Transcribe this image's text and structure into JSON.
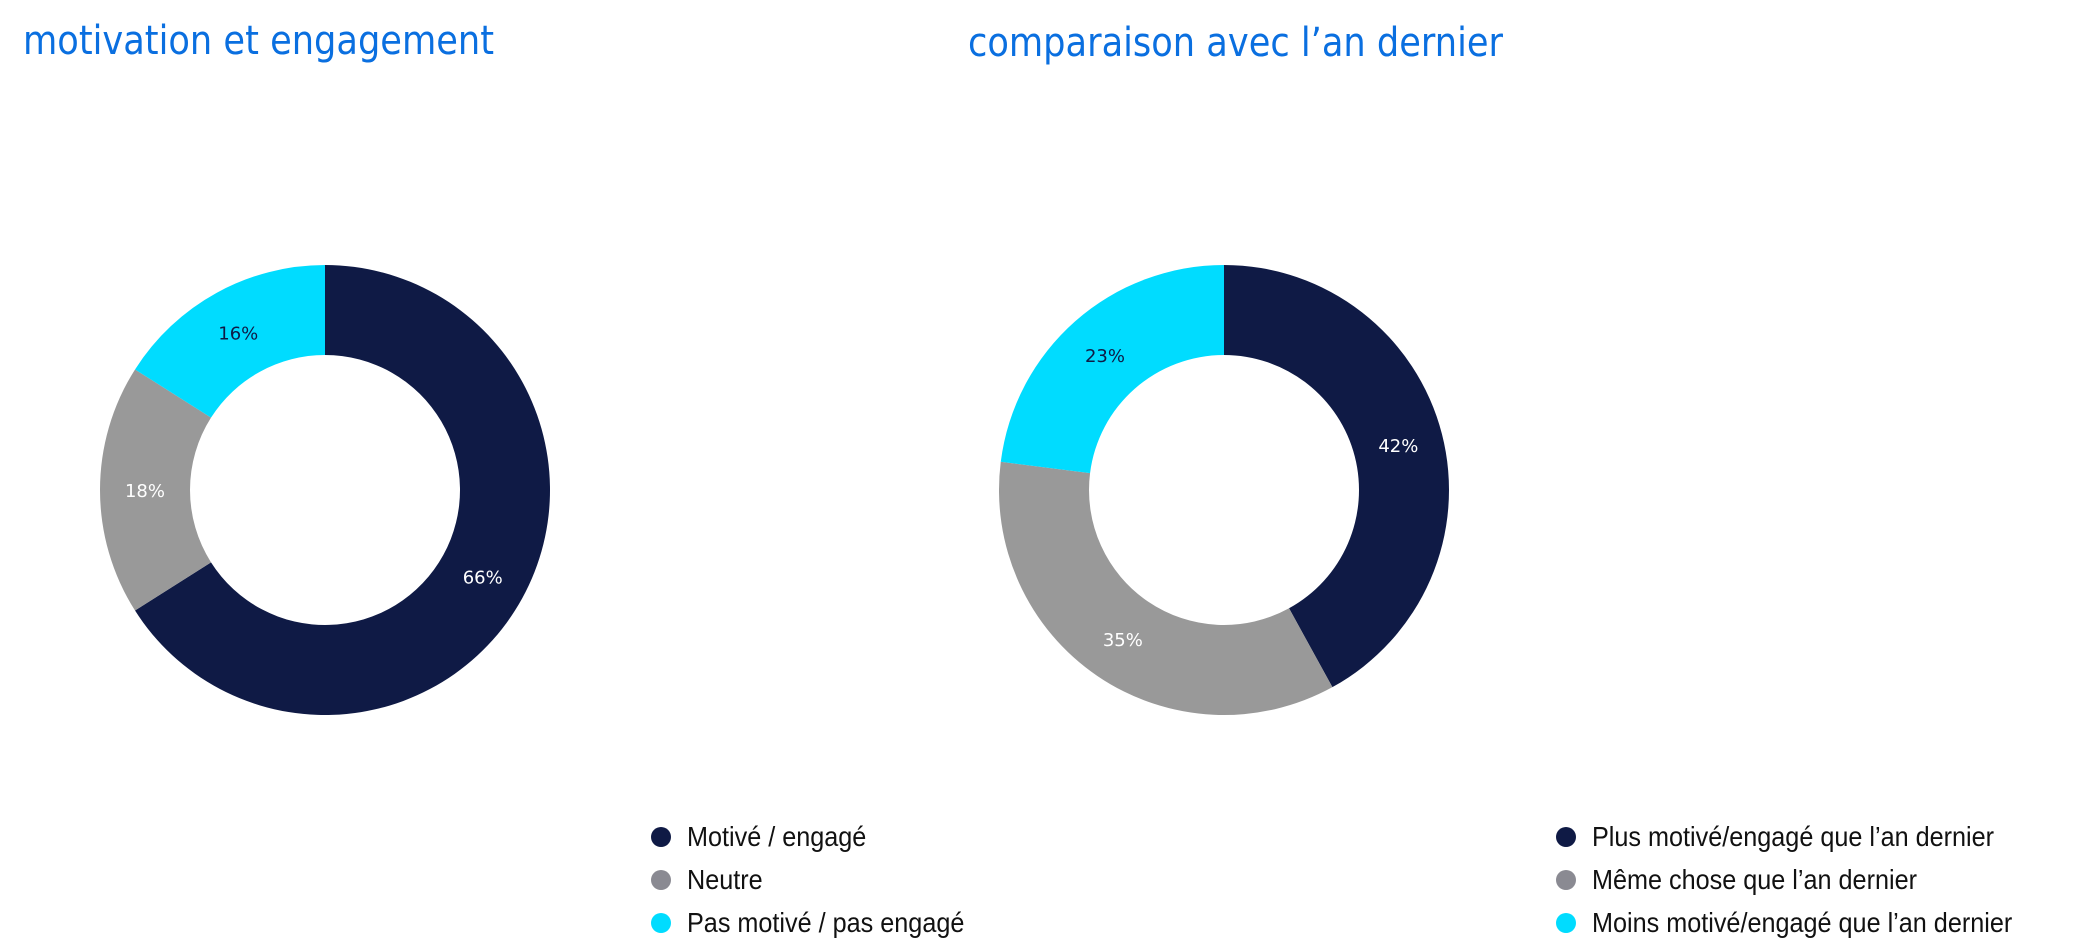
{
  "chart_data": [
    {
      "type": "pie",
      "donut": true,
      "title": "motivation et engagement",
      "categories": [
        "Motivé / engagé",
        "Neutre",
        "Pas motivé / pas engagé"
      ],
      "values": [
        66,
        18,
        16
      ],
      "labels": [
        "66%",
        "18%",
        "16%"
      ],
      "colors": [
        "#0f1a45",
        "#999999",
        "#00dcff"
      ],
      "legend": "bottom-right"
    },
    {
      "type": "pie",
      "donut": true,
      "title": "comparaison avec l’an dernier",
      "categories": [
        "Plus motivé/engagé que l’an dernier",
        "Même chose que l’an dernier",
        "Moins motivé/engagé que l’an dernier"
      ],
      "values": [
        42,
        35,
        23
      ],
      "labels": [
        "42%",
        "35%",
        "23%"
      ],
      "colors": [
        "#0f1a45",
        "#999999",
        "#00dcff"
      ],
      "legend": "bottom-right"
    }
  ],
  "legend_dot_colors": [
    "#0f1a45",
    "#8a8a92",
    "#00dcff"
  ]
}
